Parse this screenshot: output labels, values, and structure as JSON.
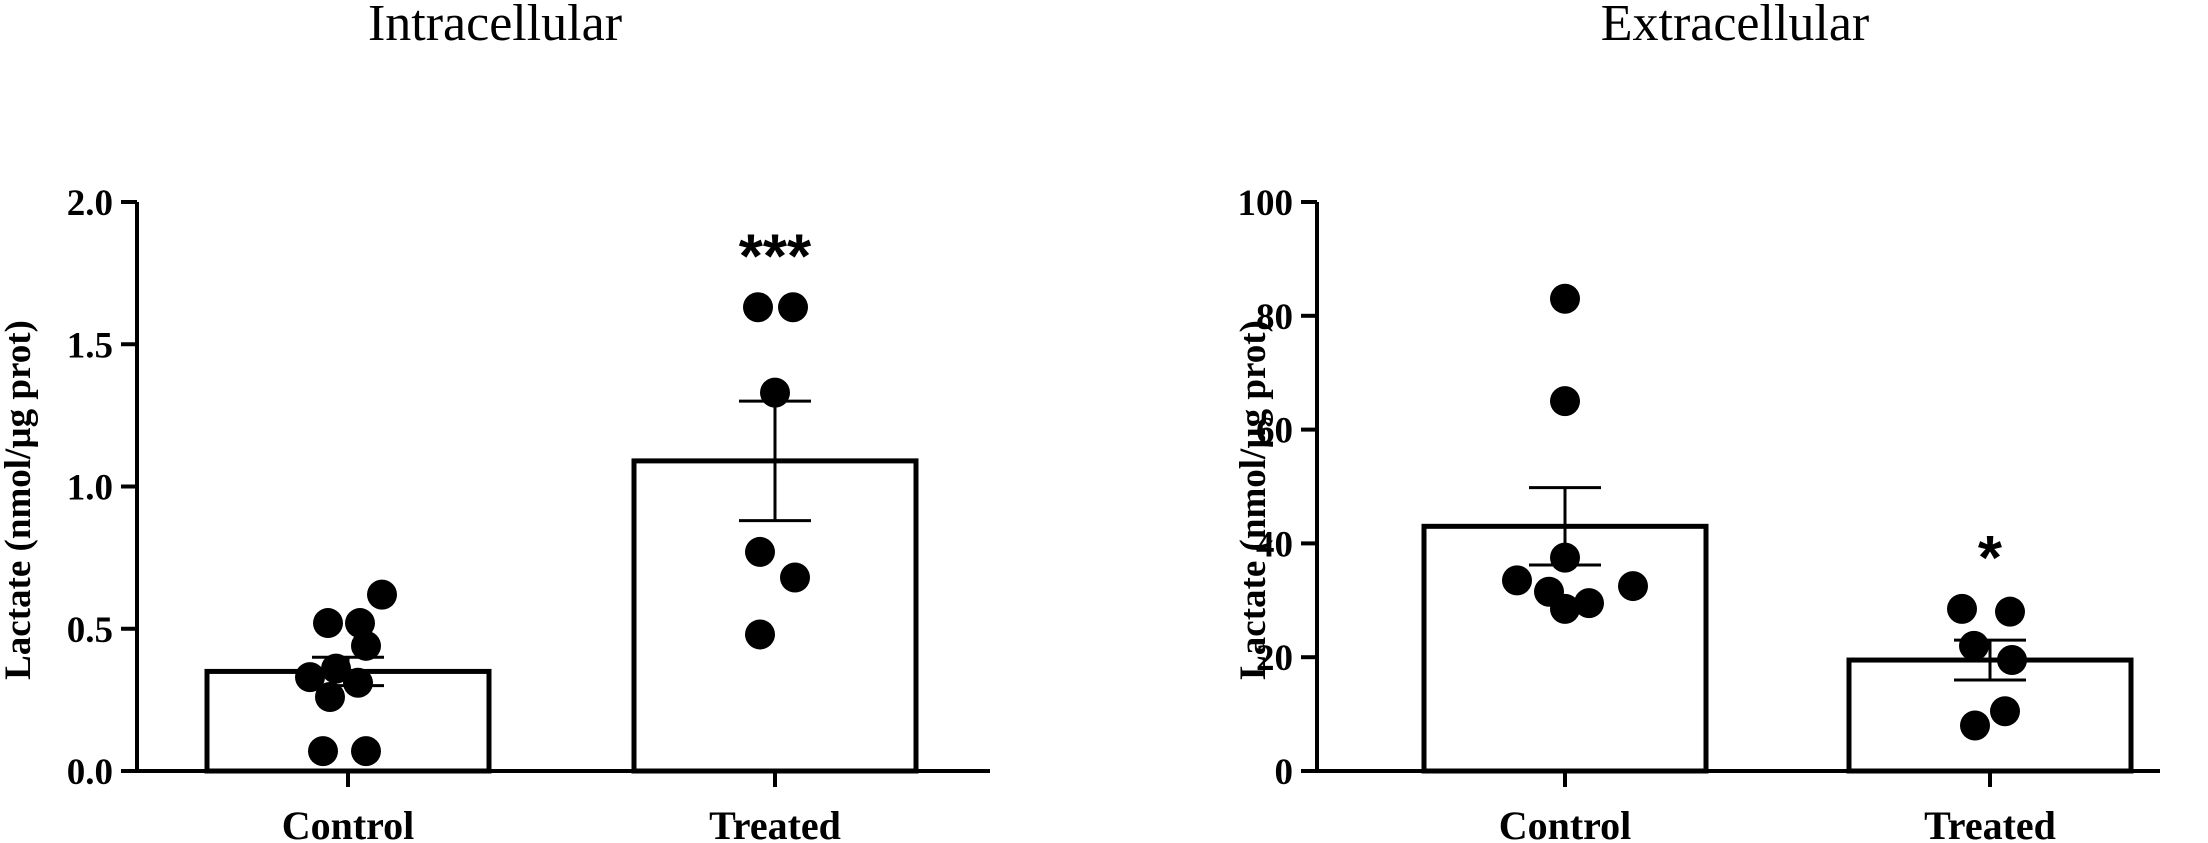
{
  "chart_data": [
    {
      "type": "bar",
      "title": "Intracellular",
      "ylabel": "Lactate (nmol/µg prot)",
      "xlabel": "",
      "ylim": [
        0,
        2.0
      ],
      "yticks": [
        "0.0",
        "0.5",
        "1.0",
        "1.5",
        "2.0"
      ],
      "categories": [
        "Control",
        "Treated"
      ],
      "values": [
        0.35,
        1.09
      ],
      "sem": [
        0.05,
        0.21
      ],
      "points": [
        [
          0.07,
          0.07,
          0.26,
          0.31,
          0.33,
          0.36,
          0.44,
          0.52,
          0.52,
          0.62
        ],
        [
          0.48,
          0.68,
          0.77,
          1.33,
          1.63,
          1.63
        ]
      ],
      "significance": [
        "",
        "***"
      ]
    },
    {
      "type": "bar",
      "title": "Extracellular",
      "ylabel": "Lactate (nmol/µg prot)",
      "xlabel": "",
      "ylim": [
        0,
        100
      ],
      "yticks": [
        "0",
        "20",
        "40",
        "60",
        "80",
        "100"
      ],
      "categories": [
        "Control",
        "Treated"
      ],
      "values": [
        43,
        19.5
      ],
      "sem": [
        6.8,
        3.5
      ],
      "points": [
        [
          83,
          65,
          37.5,
          33.5,
          32.5,
          31.5,
          29.5,
          28.5
        ],
        [
          28.5,
          28,
          22,
          19.5,
          10.5,
          8
        ]
      ],
      "significance": [
        "",
        "*"
      ]
    }
  ]
}
